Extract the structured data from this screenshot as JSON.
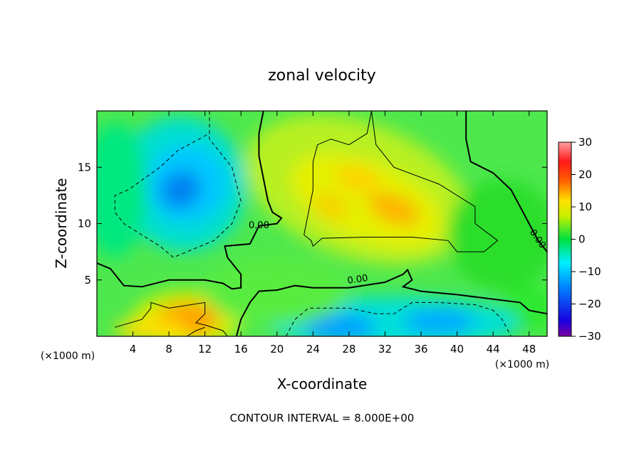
{
  "chart_data": {
    "type": "heatmap",
    "title": "zonal velocity",
    "xlabel": "X-coordinate",
    "ylabel": "Z-coordinate",
    "x_unit": "(×1000 m)",
    "z_unit": "(×1000 m)",
    "xlim": [
      0,
      50
    ],
    "ylim": [
      0,
      20
    ],
    "x_ticks": [
      "4",
      "8",
      "12",
      "16",
      "20",
      "24",
      "28",
      "32",
      "36",
      "40",
      "44",
      "48"
    ],
    "y_ticks": [
      "5",
      "10",
      "15"
    ],
    "colorbar": {
      "range": [
        -30,
        30
      ],
      "ticks": [
        "30",
        "20",
        "10",
        "0",
        "−10",
        "−20",
        "−30"
      ]
    },
    "contour_labels": [
      "0.00",
      "0.00",
      "0.00"
    ],
    "footnote": "CONTOUR INTERVAL = 8.000E+00",
    "features": [
      {
        "kind": "max",
        "x": 33,
        "z": 11.5,
        "value": 13
      },
      {
        "kind": "max",
        "x": 26,
        "z": 11.5,
        "value": 12
      },
      {
        "kind": "max",
        "x": 29,
        "z": 14,
        "value": 10
      },
      {
        "kind": "max",
        "x": 10,
        "z": 1.5,
        "value": 14
      },
      {
        "kind": "min",
        "x": 9,
        "z": 13,
        "value": -14
      },
      {
        "kind": "min",
        "x": 27,
        "z": 1,
        "value": -13
      },
      {
        "kind": "min",
        "x": 38,
        "z": 1.5,
        "value": -10
      }
    ]
  }
}
